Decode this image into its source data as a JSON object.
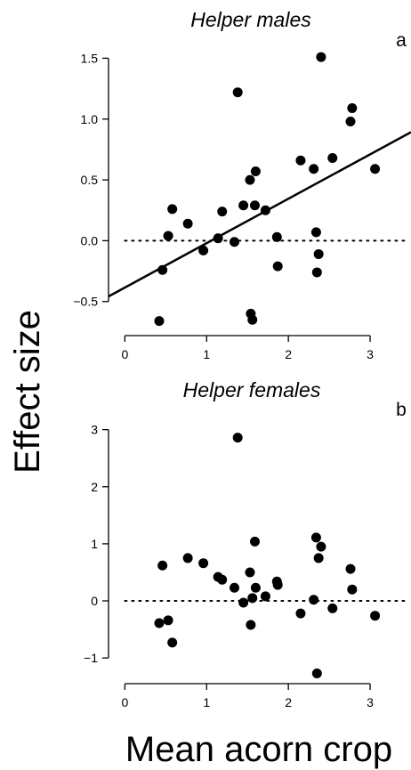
{
  "figure": {
    "ylabel": "Effect size",
    "xlabel": "Mean acorn crop"
  },
  "chart_data": [
    {
      "type": "scatter",
      "title": "Helper males",
      "panel_letter": "a",
      "xlim": [
        -0.2,
        3.5
      ],
      "ylim": [
        -0.78,
        1.73
      ],
      "x_ticks": [
        0,
        1,
        2,
        3
      ],
      "y_ticks": [
        -0.5,
        0.0,
        0.5,
        1.0,
        1.5
      ],
      "y_tick_labels": [
        "−0.5",
        "0.0",
        "0.5",
        "1.0",
        "1.5"
      ],
      "reference_line": {
        "y": 0,
        "style": "dotted"
      },
      "regression_line": {
        "intercept": -0.385,
        "slope": 0.365
      },
      "points": [
        {
          "x": 0.42,
          "y": -0.66
        },
        {
          "x": 0.46,
          "y": -0.24
        },
        {
          "x": 0.53,
          "y": 0.04
        },
        {
          "x": 0.58,
          "y": 0.26
        },
        {
          "x": 0.77,
          "y": 0.14
        },
        {
          "x": 0.96,
          "y": -0.08
        },
        {
          "x": 1.14,
          "y": 0.02
        },
        {
          "x": 1.19,
          "y": 0.24
        },
        {
          "x": 1.34,
          "y": -0.01
        },
        {
          "x": 1.38,
          "y": 1.22
        },
        {
          "x": 1.45,
          "y": 0.29
        },
        {
          "x": 1.53,
          "y": 0.5
        },
        {
          "x": 1.54,
          "y": -0.6
        },
        {
          "x": 1.56,
          "y": -0.65
        },
        {
          "x": 1.59,
          "y": 0.29
        },
        {
          "x": 1.6,
          "y": 0.57
        },
        {
          "x": 1.72,
          "y": 0.25
        },
        {
          "x": 1.86,
          "y": 0.03
        },
        {
          "x": 1.87,
          "y": -0.21
        },
        {
          "x": 2.15,
          "y": 0.66
        },
        {
          "x": 2.31,
          "y": 0.59
        },
        {
          "x": 2.34,
          "y": 0.07
        },
        {
          "x": 2.35,
          "y": -0.26
        },
        {
          "x": 2.37,
          "y": -0.11
        },
        {
          "x": 2.4,
          "y": 1.51
        },
        {
          "x": 2.54,
          "y": 0.68
        },
        {
          "x": 2.76,
          "y": 0.98
        },
        {
          "x": 2.78,
          "y": 1.09
        },
        {
          "x": 3.06,
          "y": 0.59
        }
      ]
    },
    {
      "type": "scatter",
      "title": "Helper females",
      "panel_letter": "b",
      "xlim": [
        -0.2,
        3.5
      ],
      "ylim": [
        -1.45,
        3.4
      ],
      "x_ticks": [
        0,
        1,
        2,
        3
      ],
      "y_ticks": [
        -1,
        0,
        1,
        2,
        3
      ],
      "y_tick_labels": [
        "−1",
        "0",
        "1",
        "2",
        "3"
      ],
      "reference_line": {
        "y": 0,
        "style": "dotted"
      },
      "points": [
        {
          "x": 0.42,
          "y": -0.39
        },
        {
          "x": 0.46,
          "y": 0.62
        },
        {
          "x": 0.53,
          "y": -0.34
        },
        {
          "x": 0.58,
          "y": -0.73
        },
        {
          "x": 0.77,
          "y": 0.75
        },
        {
          "x": 0.96,
          "y": 0.66
        },
        {
          "x": 1.14,
          "y": 0.42
        },
        {
          "x": 1.19,
          "y": 0.37
        },
        {
          "x": 1.34,
          "y": 0.23
        },
        {
          "x": 1.38,
          "y": 2.86
        },
        {
          "x": 1.45,
          "y": -0.03
        },
        {
          "x": 1.53,
          "y": 0.5
        },
        {
          "x": 1.54,
          "y": -0.42
        },
        {
          "x": 1.56,
          "y": 0.05
        },
        {
          "x": 1.59,
          "y": 1.04
        },
        {
          "x": 1.6,
          "y": 0.23
        },
        {
          "x": 1.72,
          "y": 0.08
        },
        {
          "x": 1.86,
          "y": 0.34
        },
        {
          "x": 1.87,
          "y": 0.28
        },
        {
          "x": 2.15,
          "y": -0.22
        },
        {
          "x": 2.31,
          "y": 0.02
        },
        {
          "x": 2.34,
          "y": 1.11
        },
        {
          "x": 2.35,
          "y": -1.27
        },
        {
          "x": 2.37,
          "y": 0.75
        },
        {
          "x": 2.4,
          "y": 0.95
        },
        {
          "x": 2.54,
          "y": -0.13
        },
        {
          "x": 2.76,
          "y": 0.56
        },
        {
          "x": 2.78,
          "y": 0.2
        },
        {
          "x": 3.06,
          "y": -0.26
        }
      ]
    }
  ]
}
